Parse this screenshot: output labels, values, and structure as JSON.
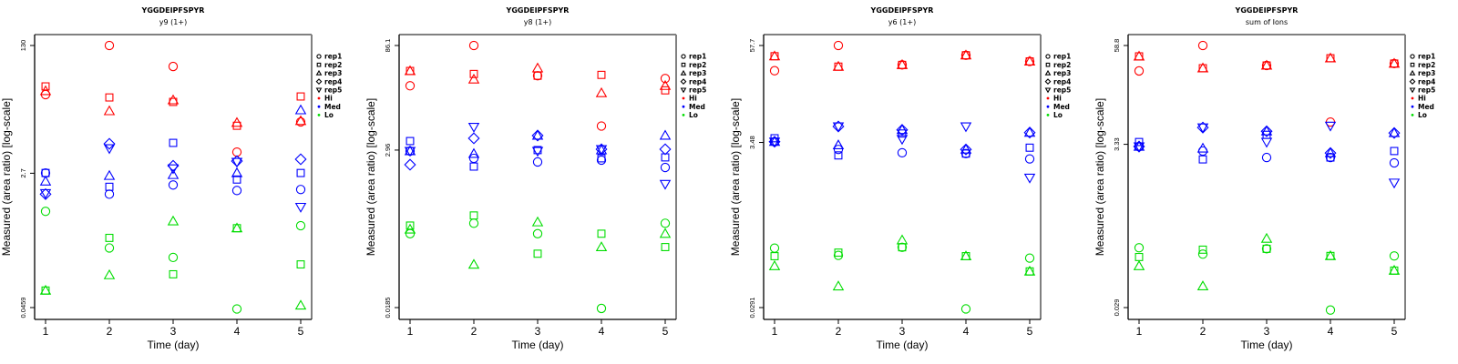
{
  "chart_data": [
    {
      "type": "scatter",
      "title": "YGGDEIPFSPYR",
      "subtitle": "y9 (1+)",
      "xlabel": "Time (day)",
      "ylabel": "Measured (area ratio) [log-scale]",
      "y_scale": "log",
      "x_ticks": [
        "1",
        "2",
        "3",
        "4",
        "5"
      ],
      "y_ticks": [
        {
          "value": 130,
          "label": "130"
        },
        {
          "value": 2.7,
          "label": "2.7"
        },
        {
          "value": 0.0459,
          "label": "0.0459"
        }
      ],
      "ylim": [
        0.0459,
        130
      ],
      "xlim": [
        1,
        5
      ],
      "grid": false,
      "legend_position": "right",
      "series": [
        {
          "group": "Hi",
          "rep": "rep1",
          "x": [
            1,
            2,
            3,
            4,
            5
          ],
          "values": [
            29.3,
            130,
            68.8,
            5.13,
            12.8
          ]
        },
        {
          "group": "Hi",
          "rep": "rep2",
          "x": [
            1,
            2,
            3,
            4,
            5
          ],
          "values": [
            37.6,
            26.9,
            23.5,
            11.4,
            27.7
          ]
        },
        {
          "group": "Hi",
          "rep": "rep3",
          "x": [
            1,
            2,
            3,
            4,
            5
          ],
          "values": [
            32.7,
            17.8,
            24.8,
            12.5,
            13.2
          ]
        },
        {
          "group": "Med",
          "rep": "rep1",
          "x": [
            1,
            2,
            3,
            4,
            5
          ],
          "values": [
            2.72,
            1.43,
            1.89,
            1.6,
            1.65
          ]
        },
        {
          "group": "Med",
          "rep": "rep2",
          "x": [
            1,
            2,
            3,
            4,
            5
          ],
          "values": [
            2.72,
            1.79,
            6.78,
            2.23,
            2.72
          ]
        },
        {
          "group": "Med",
          "rep": "rep3",
          "x": [
            1,
            2,
            3,
            4,
            5
          ],
          "values": [
            2.11,
            2.5,
            2.57,
            2.72,
            18.3
          ]
        },
        {
          "group": "Med",
          "rep": "rep4",
          "x": [
            1,
            2,
            3,
            4,
            5
          ],
          "values": [
            1.43,
            6.6,
            3.39,
            3.9,
            4.13
          ]
        },
        {
          "group": "Med",
          "rep": "rep5",
          "x": [
            1,
            2,
            3,
            4,
            5
          ],
          "values": [
            1.47,
            5.74,
            3.12,
            3.8,
            0.97
          ]
        },
        {
          "group": "Lo",
          "rep": "rep1",
          "x": [
            1,
            2,
            3,
            4,
            5
          ],
          "values": [
            0.85,
            0.28,
            0.21,
            0.044,
            0.55
          ]
        },
        {
          "group": "Lo",
          "rep": "rep2",
          "x": [
            1,
            2,
            3,
            4,
            5
          ],
          "values": [
            0.077,
            0.38,
            0.126,
            0.51,
            0.17
          ]
        },
        {
          "group": "Lo",
          "rep": "rep3",
          "x": [
            1,
            2,
            3,
            4,
            5
          ],
          "values": [
            0.077,
            0.123,
            0.63,
            0.51,
            0.049
          ]
        }
      ]
    },
    {
      "type": "scatter",
      "title": "YGGDEIPFSPYR",
      "subtitle": "y8 (1+)",
      "xlabel": "Time (day)",
      "ylabel": "Measured (area ratio) [log-scale]",
      "y_scale": "log",
      "x_ticks": [
        "1",
        "2",
        "3",
        "4",
        "5"
      ],
      "y_ticks": [
        {
          "value": 86.1,
          "label": "86.1"
        },
        {
          "value": 2.96,
          "label": "2.96"
        },
        {
          "value": 0.0185,
          "label": "0.0185"
        }
      ],
      "ylim": [
        0.0185,
        86.1
      ],
      "xlim": [
        1,
        5
      ],
      "grid": false,
      "legend_position": "right",
      "series": [
        {
          "group": "Hi",
          "rep": "rep1",
          "x": [
            1,
            2,
            3,
            4,
            5
          ],
          "values": [
            23.5,
            86.1,
            32.5,
            6.42,
            29.7
          ]
        },
        {
          "group": "Hi",
          "rep": "rep2",
          "x": [
            1,
            2,
            3,
            4,
            5
          ],
          "values": [
            37.9,
            34.4,
            32.5,
            33.4,
            20.3
          ]
        },
        {
          "group": "Hi",
          "rep": "rep3",
          "x": [
            1,
            2,
            3,
            4,
            5
          ],
          "values": [
            37.9,
            28.9,
            41.4,
            18.6,
            23.5
          ]
        },
        {
          "group": "Med",
          "rep": "rep1",
          "x": [
            1,
            2,
            3,
            4,
            5
          ],
          "values": [
            2.87,
            2.27,
            2.02,
            2.14,
            1.69
          ]
        },
        {
          "group": "Med",
          "rep": "rep2",
          "x": [
            1,
            2,
            3,
            4,
            5
          ],
          "values": [
            3.96,
            1.74,
            2.96,
            2.27,
            2.34
          ]
        },
        {
          "group": "Med",
          "rep": "rep3",
          "x": [
            1,
            2,
            3,
            4,
            5
          ],
          "values": [
            2.87,
            2.63,
            4.73,
            2.96,
            4.73
          ]
        },
        {
          "group": "Med",
          "rep": "rep4",
          "x": [
            1,
            2,
            3,
            4,
            5
          ],
          "values": [
            1.85,
            4.33,
            4.73,
            3.04,
            3.04
          ]
        },
        {
          "group": "Med",
          "rep": "rep5",
          "x": [
            1,
            2,
            3,
            4,
            5
          ],
          "values": [
            2.87,
            6.24,
            2.87,
            3.04,
            0.99
          ]
        },
        {
          "group": "Lo",
          "rep": "rep1",
          "x": [
            1,
            2,
            3,
            4,
            5
          ],
          "values": [
            0.2,
            0.28,
            0.2,
            0.018,
            0.28
          ]
        },
        {
          "group": "Lo",
          "rep": "rep2",
          "x": [
            1,
            2,
            3,
            4,
            5
          ],
          "values": [
            0.26,
            0.36,
            0.105,
            0.2,
            0.13
          ]
        },
        {
          "group": "Lo",
          "rep": "rep3",
          "x": [
            1,
            2,
            3,
            4,
            5
          ],
          "values": [
            0.23,
            0.074,
            0.29,
            0.13,
            0.2
          ]
        }
      ]
    },
    {
      "type": "scatter",
      "title": "YGGDEIPFSPYR",
      "subtitle": "y6 (1+)",
      "xlabel": "Time (day)",
      "ylabel": "Measured (area ratio) [log-scale]",
      "y_scale": "log",
      "x_ticks": [
        "1",
        "2",
        "3",
        "4",
        "5"
      ],
      "y_ticks": [
        {
          "value": 57.7,
          "label": "57.7"
        },
        {
          "value": 3.48,
          "label": "3.48"
        },
        {
          "value": 0.0291,
          "label": "0.0291"
        }
      ],
      "ylim": [
        0.0291,
        57.7
      ],
      "xlim": [
        1,
        5
      ],
      "grid": false,
      "legend_position": "right",
      "series": [
        {
          "group": "Hi",
          "rep": "rep1",
          "x": [
            1,
            2,
            3,
            4,
            5
          ],
          "values": [
            27.8,
            57.7,
            32.9,
            43.5,
            36.4
          ]
        },
        {
          "group": "Hi",
          "rep": "rep2",
          "x": [
            1,
            2,
            3,
            4,
            5
          ],
          "values": [
            42.3,
            31.3,
            32.9,
            43.5,
            36.4
          ]
        },
        {
          "group": "Hi",
          "rep": "rep3",
          "x": [
            1,
            2,
            3,
            4,
            5
          ],
          "values": [
            42.3,
            31.3,
            32.9,
            43.5,
            36.4
          ]
        },
        {
          "group": "Med",
          "rep": "rep1",
          "x": [
            1,
            2,
            3,
            4,
            5
          ],
          "values": [
            3.55,
            2.84,
            2.58,
            2.52,
            2.16
          ]
        },
        {
          "group": "Med",
          "rep": "rep2",
          "x": [
            1,
            2,
            3,
            4,
            5
          ],
          "values": [
            3.93,
            2.39,
            4.51,
            2.52,
            2.99
          ]
        },
        {
          "group": "Med",
          "rep": "rep3",
          "x": [
            1,
            2,
            3,
            4,
            5
          ],
          "values": [
            3.55,
            3.22,
            5.01,
            2.84,
            4.63
          ]
        },
        {
          "group": "Med",
          "rep": "rep4",
          "x": [
            1,
            2,
            3,
            4,
            5
          ],
          "values": [
            3.55,
            5.52,
            5.01,
            2.84,
            4.63
          ]
        },
        {
          "group": "Med",
          "rep": "rep5",
          "x": [
            1,
            2,
            3,
            4,
            5
          ],
          "values": [
            3.55,
            5.52,
            3.83,
            5.52,
            1.25
          ]
        },
        {
          "group": "Lo",
          "rep": "rep1",
          "x": [
            1,
            2,
            3,
            4,
            5
          ],
          "values": [
            0.163,
            0.132,
            0.167,
            0.028,
            0.122
          ]
        },
        {
          "group": "Lo",
          "rep": "rep2",
          "x": [
            1,
            2,
            3,
            4,
            5
          ],
          "values": [
            0.129,
            0.143,
            0.167,
            0.129,
            0.083
          ]
        },
        {
          "group": "Lo",
          "rep": "rep3",
          "x": [
            1,
            2,
            3,
            4,
            5
          ],
          "values": [
            0.097,
            0.054,
            0.205,
            0.129,
            0.083
          ]
        }
      ]
    },
    {
      "type": "scatter",
      "title": "YGGDEIPFSPYR",
      "subtitle": "sum of Ions",
      "xlabel": "Time (day)",
      "ylabel": "Measured (area ratio) [log-scale]",
      "y_scale": "log",
      "x_ticks": [
        "1",
        "2",
        "3",
        "4",
        "5"
      ],
      "y_ticks": [
        {
          "value": 58.8,
          "label": "58.8"
        },
        {
          "value": 3.33,
          "label": "3.33"
        },
        {
          "value": 0.029,
          "label": "0.029"
        }
      ],
      "ylim": [
        0.029,
        58.8
      ],
      "xlim": [
        1,
        5
      ],
      "grid": false,
      "legend_position": "right",
      "series": [
        {
          "group": "Hi",
          "rep": "rep1",
          "x": [
            1,
            2,
            3,
            4,
            5
          ],
          "values": [
            28.1,
            58.8,
            32.9,
            6.36,
            34.8
          ]
        },
        {
          "group": "Hi",
          "rep": "rep2",
          "x": [
            1,
            2,
            3,
            4,
            5
          ],
          "values": [
            42.9,
            30.4,
            32.9,
            40.6,
            34.8
          ]
        },
        {
          "group": "Hi",
          "rep": "rep3",
          "x": [
            1,
            2,
            3,
            4,
            5
          ],
          "values": [
            42.9,
            30.4,
            32.9,
            40.6,
            34.8
          ]
        },
        {
          "group": "Med",
          "rep": "rep1",
          "x": [
            1,
            2,
            3,
            4,
            5
          ],
          "values": [
            3.12,
            2.74,
            2.27,
            2.27,
            1.94
          ]
        },
        {
          "group": "Med",
          "rep": "rep2",
          "x": [
            1,
            2,
            3,
            4,
            5
          ],
          "values": [
            3.56,
            2.15,
            4.39,
            2.27,
            2.74
          ]
        },
        {
          "group": "Med",
          "rep": "rep3",
          "x": [
            1,
            2,
            3,
            4,
            5
          ],
          "values": [
            3.12,
            2.96,
            4.87,
            2.59,
            4.63
          ]
        },
        {
          "group": "Med",
          "rep": "rep4",
          "x": [
            1,
            2,
            3,
            4,
            5
          ],
          "values": [
            3.12,
            5.42,
            4.87,
            2.59,
            4.63
          ]
        },
        {
          "group": "Med",
          "rep": "rep5",
          "x": [
            1,
            2,
            3,
            4,
            5
          ],
          "values": [
            3.12,
            5.42,
            3.56,
            5.7,
            1.09
          ]
        },
        {
          "group": "Lo",
          "rep": "rep1",
          "x": [
            1,
            2,
            3,
            4,
            5
          ],
          "values": [
            0.165,
            0.137,
            0.16,
            0.027,
            0.13
          ]
        },
        {
          "group": "Lo",
          "rep": "rep2",
          "x": [
            1,
            2,
            3,
            4,
            5
          ],
          "values": [
            0.126,
            0.156,
            0.16,
            0.13,
            0.085
          ]
        },
        {
          "group": "Lo",
          "rep": "rep3",
          "x": [
            1,
            2,
            3,
            4,
            5
          ],
          "values": [
            0.097,
            0.054,
            0.215,
            0.13,
            0.085
          ]
        }
      ]
    }
  ],
  "legend": {
    "shapes": [
      {
        "label": "rep1",
        "symbol": "circle"
      },
      {
        "label": "rep2",
        "symbol": "square"
      },
      {
        "label": "rep3",
        "symbol": "triangle-up"
      },
      {
        "label": "rep4",
        "symbol": "diamond"
      },
      {
        "label": "rep5",
        "symbol": "triangle-down"
      }
    ],
    "groups": [
      {
        "label": "Hi",
        "color": "#ff0000"
      },
      {
        "label": "Med",
        "color": "#0000ff"
      },
      {
        "label": "Lo",
        "color": "#00dd00"
      }
    ]
  }
}
